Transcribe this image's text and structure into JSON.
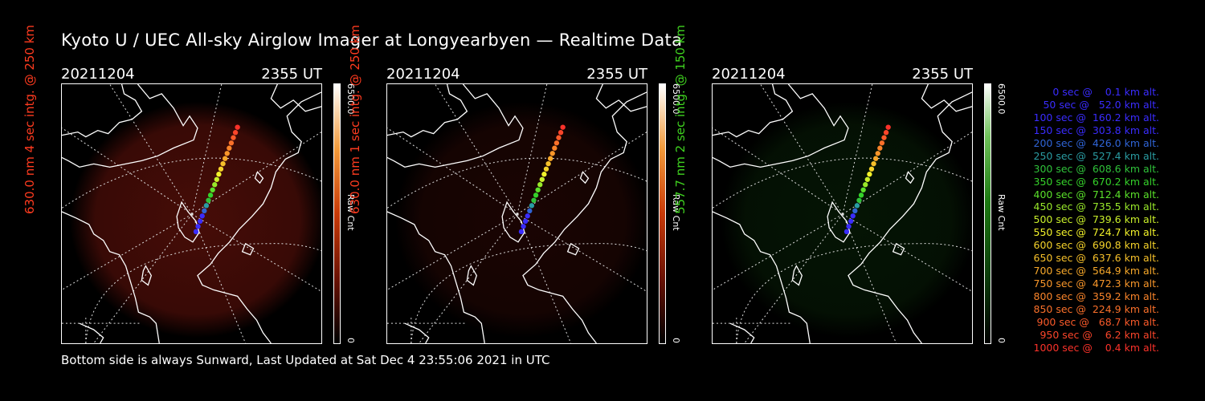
{
  "title": "Kyoto U / UEC All-sky Airglow Imager at Longyearbyen — Realtime Data",
  "footer": "Bottom side is always Sunward, Last Updated at Sat Dec  4 23:55:06 2021 in UTC",
  "panels": [
    {
      "date": "20211204",
      "time": "2355 UT",
      "side_label": "630.0 nm 4 sec intg. @ 250 km",
      "side_color": "#ff3b1f",
      "cbar_max": "6500.0",
      "cbar_min": "0",
      "cbar_unit": "Raw Cnt",
      "scheme": "red",
      "glow": "strong"
    },
    {
      "date": "20211204",
      "time": "2355 UT",
      "side_label": "630.0 nm 1 sec intg. @ 250 km",
      "side_color": "#ff3b1f",
      "cbar_max": "6500.0",
      "cbar_min": "0",
      "cbar_unit": "Raw Cnt",
      "scheme": "red",
      "glow": "weak"
    },
    {
      "date": "20211204",
      "time": "2355 UT",
      "side_label": "557.7 nm 2 sec intg. @ 150 km",
      "side_color": "#3fd21f",
      "cbar_max": "6500.0",
      "cbar_min": "0",
      "cbar_unit": "Raw Cnt",
      "scheme": "green",
      "glow": "weak"
    }
  ],
  "legend": [
    {
      "text": "   0 sec @    0.1 km alt.",
      "color": "#3a2cff"
    },
    {
      "text": "  50 sec @   52.0 km alt.",
      "color": "#3a2cff"
    },
    {
      "text": " 100 sec @  160.2 km alt.",
      "color": "#3a2cff"
    },
    {
      "text": " 150 sec @  303.8 km alt.",
      "color": "#3a2cff"
    },
    {
      "text": " 200 sec @  426.0 km alt.",
      "color": "#2f64d6"
    },
    {
      "text": " 250 sec @  527.4 km alt.",
      "color": "#2a9ca2"
    },
    {
      "text": " 300 sec @  608.6 km alt.",
      "color": "#2fc23a"
    },
    {
      "text": " 350 sec @  670.2 km alt.",
      "color": "#35d22a"
    },
    {
      "text": " 400 sec @  712.4 km alt.",
      "color": "#5ae02a"
    },
    {
      "text": " 450 sec @  735.5 km alt.",
      "color": "#98e82a"
    },
    {
      "text": " 500 sec @  739.6 km alt.",
      "color": "#c9ef2a"
    },
    {
      "text": " 550 sec @  724.7 km alt.",
      "color": "#f2f22a"
    },
    {
      "text": " 600 sec @  690.8 km alt.",
      "color": "#f4d22a"
    },
    {
      "text": " 650 sec @  637.6 km alt.",
      "color": "#f6c02a"
    },
    {
      "text": " 700 sec @  564.9 km alt.",
      "color": "#f7a82a"
    },
    {
      "text": " 750 sec @  472.3 km alt.",
      "color": "#f8962a"
    },
    {
      "text": " 800 sec @  359.2 km alt.",
      "color": "#f9842a"
    },
    {
      "text": " 850 sec @  224.9 km alt.",
      "color": "#fa702a"
    },
    {
      "text": " 900 sec @   68.7 km alt.",
      "color": "#fa5a2a"
    },
    {
      "text": " 950 sec @    6.2 km alt.",
      "color": "#fb452a"
    },
    {
      "text": "1000 sec @    0.4 km alt.",
      "color": "#fb322a"
    }
  ]
}
